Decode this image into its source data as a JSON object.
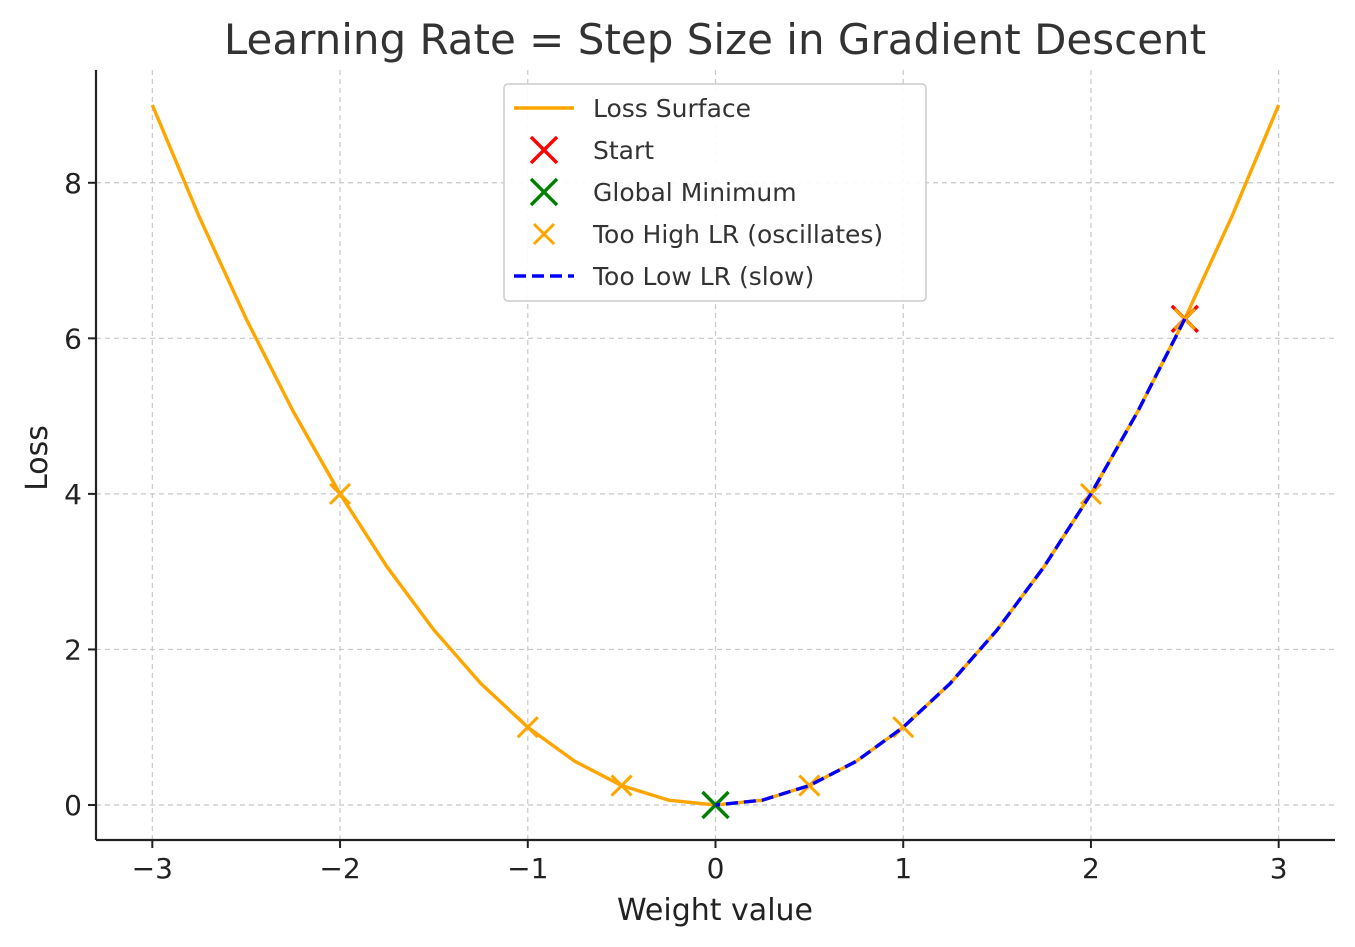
{
  "chart_data": {
    "type": "line",
    "title": "Learning Rate = Step Size in Gradient Descent",
    "xlabel": "Weight value",
    "ylabel": "Loss",
    "xlim": [
      -3.3,
      3.3
    ],
    "ylim": [
      -0.45,
      9.45
    ],
    "xticks": [
      -3,
      -2,
      -1,
      0,
      1,
      2,
      3
    ],
    "xtick_labels": [
      "−3",
      "−2",
      "−1",
      "0",
      "1",
      "2",
      "3"
    ],
    "yticks": [
      0,
      2,
      4,
      6,
      8
    ],
    "ytick_labels": [
      "0",
      "2",
      "4",
      "6",
      "8"
    ],
    "grid": true,
    "legend_position": "top-center",
    "series": [
      {
        "name": "Loss Surface",
        "kind": "line",
        "color": "#FFA500",
        "x": [
          -3.0,
          -2.75,
          -2.5,
          -2.25,
          -2.0,
          -1.75,
          -1.5,
          -1.25,
          -1.0,
          -0.75,
          -0.5,
          -0.25,
          0.0,
          0.25,
          0.5,
          0.75,
          1.0,
          1.25,
          1.5,
          1.75,
          2.0,
          2.25,
          2.5,
          2.75,
          3.0
        ],
        "y": [
          9.0,
          7.5625,
          6.25,
          5.0625,
          4.0,
          3.0625,
          2.25,
          1.5625,
          1.0,
          0.5625,
          0.25,
          0.0625,
          0.0,
          0.0625,
          0.25,
          0.5625,
          1.0,
          1.5625,
          2.25,
          3.0625,
          4.0,
          5.0625,
          6.25,
          7.5625,
          9.0
        ]
      },
      {
        "name": "Start",
        "kind": "marker",
        "color": "#FF0000",
        "x": [
          2.5
        ],
        "y": [
          6.25
        ]
      },
      {
        "name": "Global Minimum",
        "kind": "marker",
        "color": "#008000",
        "x": [
          0.0
        ],
        "y": [
          0.0
        ]
      },
      {
        "name": "Too High LR (oscillates)",
        "kind": "marker",
        "color": "#FFA500",
        "x": [
          2.5,
          -2.0,
          2.0,
          -1.0,
          1.0,
          -0.5,
          0.5
        ],
        "y": [
          6.25,
          4.0,
          4.0,
          1.0,
          1.0,
          0.25,
          0.25
        ]
      },
      {
        "name": "Too Low LR (slow)",
        "kind": "dashed-line",
        "color": "#0000FF",
        "x": [
          2.5,
          2.25,
          2.0,
          1.75,
          1.5,
          1.25,
          1.0,
          0.75,
          0.5,
          0.25,
          0.0
        ],
        "y": [
          6.25,
          5.0625,
          4.0,
          3.0625,
          2.25,
          1.5625,
          1.0,
          0.5625,
          0.25,
          0.0625,
          0.0
        ]
      }
    ]
  }
}
